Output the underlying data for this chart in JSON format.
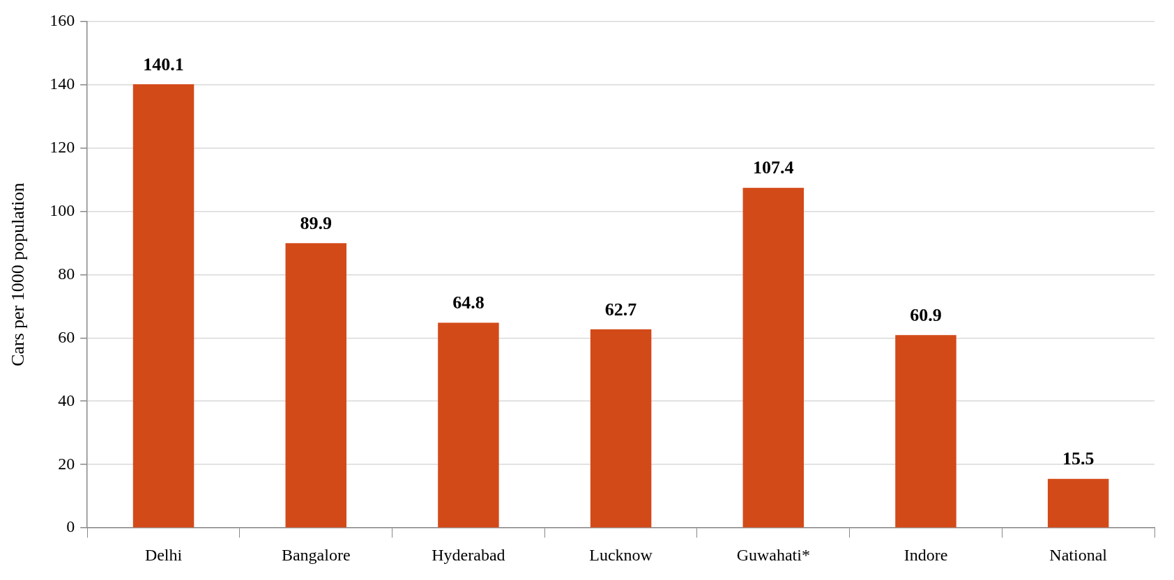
{
  "chart_data": {
    "type": "bar",
    "ylabel": "Cars per 1000 population",
    "categories": [
      "Delhi",
      "Bangalore",
      "Hyderabad",
      "Lucknow",
      "Guwahati*",
      "Indore",
      "National"
    ],
    "values": [
      140.1,
      89.9,
      64.8,
      62.7,
      107.4,
      60.9,
      15.5
    ],
    "color": "#d34a19",
    "ylim": [
      0,
      160
    ],
    "yticks": [
      0,
      20,
      40,
      60,
      80,
      100,
      120,
      140,
      160
    ],
    "grid": "y",
    "data_labels": true,
    "legend": false
  }
}
